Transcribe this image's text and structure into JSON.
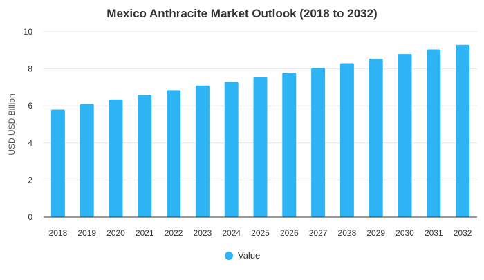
{
  "chart_data": {
    "type": "bar",
    "title": "Mexico Anthracite Market Outlook (2018 to 2032)",
    "xlabel": "",
    "ylabel": "USD USD Billion",
    "categories": [
      "2018",
      "2019",
      "2020",
      "2021",
      "2022",
      "2023",
      "2024",
      "2025",
      "2026",
      "2027",
      "2028",
      "2029",
      "2030",
      "2031",
      "2032"
    ],
    "series": [
      {
        "name": "Value",
        "values": [
          5.8,
          6.1,
          6.35,
          6.6,
          6.85,
          7.1,
          7.3,
          7.55,
          7.8,
          8.05,
          8.3,
          8.55,
          8.8,
          9.05,
          9.3
        ]
      }
    ],
    "ylim": [
      0,
      10
    ],
    "yticks": [
      0,
      2,
      4,
      6,
      8,
      10
    ],
    "grid": true,
    "legend_position": "bottom",
    "colors": {
      "bar": "#2eb3f5",
      "grid": "#e6e6e6",
      "axis": "#333333",
      "text": "#333333"
    }
  }
}
